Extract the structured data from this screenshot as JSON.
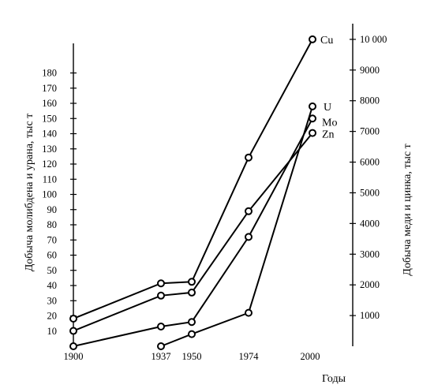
{
  "chart_data": {
    "type": "line",
    "title": "",
    "xlabel": "Годы",
    "ylabel_left": "Добыча молибдена и урана, тыс т",
    "ylabel_right": "Добыча меди и цинка, тыс т",
    "x_ticks": [
      "1900",
      "1937",
      "1950",
      "1974",
      "2000"
    ],
    "xlim": [
      1900,
      2004
    ],
    "ylim_left": [
      0,
      185
    ],
    "ylim_right": [
      0,
      10600
    ],
    "left_ticks": [
      10,
      20,
      30,
      40,
      50,
      60,
      70,
      80,
      90,
      100,
      110,
      120,
      130,
      140,
      150,
      160,
      170,
      180
    ],
    "right_ticks": [
      1000,
      2000,
      3000,
      4000,
      5000,
      6000,
      7000,
      8000,
      9000,
      10000
    ],
    "right_tick_labels": [
      "1000",
      "2000",
      "3000",
      "4000",
      "5000",
      "6000",
      "7000",
      "8000",
      "9000",
      "10 000"
    ],
    "grid": false,
    "legend": "none",
    "series": [
      {
        "name": "Cu",
        "axis": "right",
        "x": [
          1900,
          1937,
          1950,
          1974,
          2001
        ],
        "y": [
          900,
          2050,
          2100,
          6150,
          10000
        ]
      },
      {
        "name": "U",
        "axis": "left",
        "x": [
          1937,
          1950,
          1974,
          2001
        ],
        "y": [
          0,
          8,
          22,
          158
        ]
      },
      {
        "name": "Mo",
        "axis": "left",
        "x": [
          1900,
          1937,
          1950,
          1974,
          2001
        ],
        "y": [
          0,
          13,
          16,
          72,
          150
        ]
      },
      {
        "name": "Zn",
        "axis": "right",
        "x": [
          1900,
          1937,
          1950,
          1974,
          2001
        ],
        "y": [
          500,
          1650,
          1750,
          4400,
          6950
        ]
      }
    ]
  }
}
